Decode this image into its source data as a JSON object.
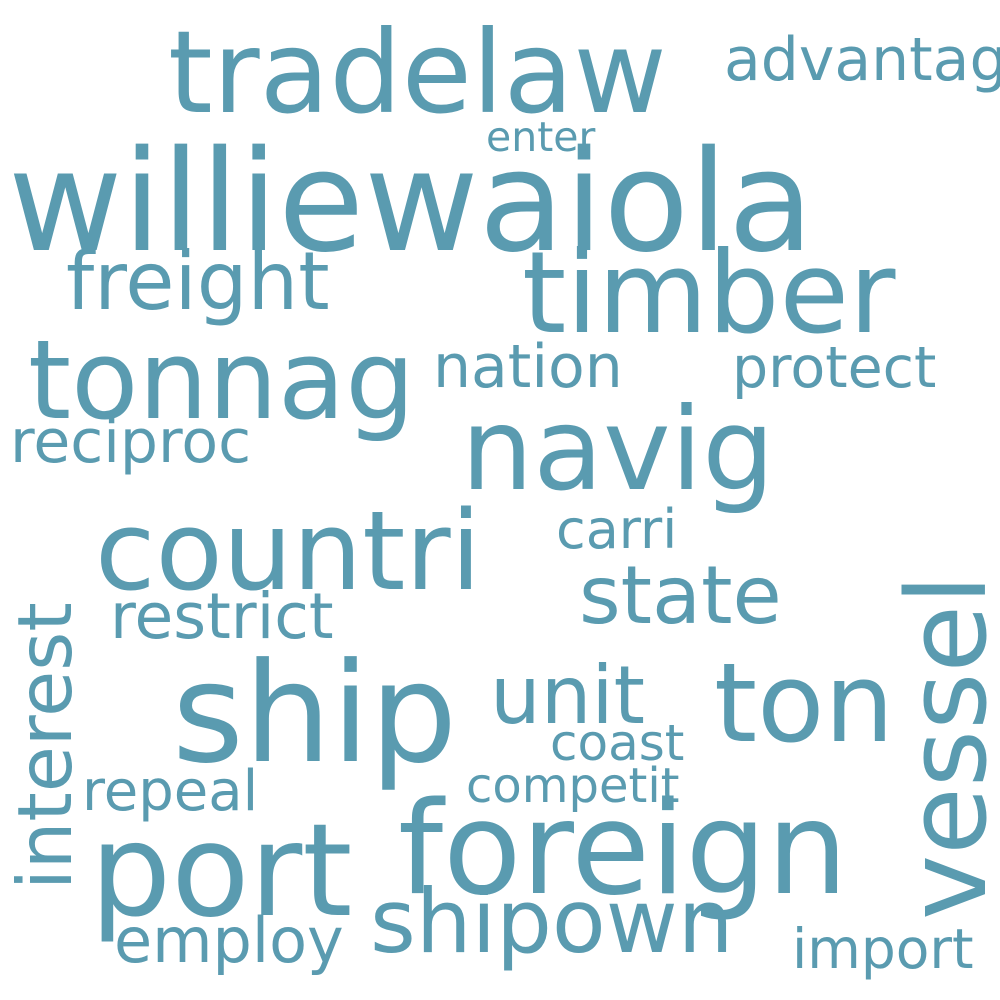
{
  "word_color": "#5a9bb0",
  "background_color": "#ffffff",
  "words": {
    "williewaiola": "williewaiola",
    "tradelaw": "tradelaw",
    "advantag": "advantag",
    "enter": "enter",
    "timber": "timber",
    "freight": "freight",
    "tonnag": "tonnag",
    "nation": "nation",
    "protect": "protect",
    "navig": "navig",
    "reciproc": "reciproc",
    "countri": "countri",
    "carri": "carri",
    "interest": "interest",
    "vessel": "vessel",
    "state": "state",
    "restrict": "restrict",
    "ship": "ship",
    "unit": "unit",
    "ton": "ton",
    "coast": "coast",
    "repeal": "repeal",
    "competit": "competit",
    "port": "port",
    "foreign": "foreign",
    "shipown": "shipown",
    "employ": "employ",
    "import": "import"
  }
}
